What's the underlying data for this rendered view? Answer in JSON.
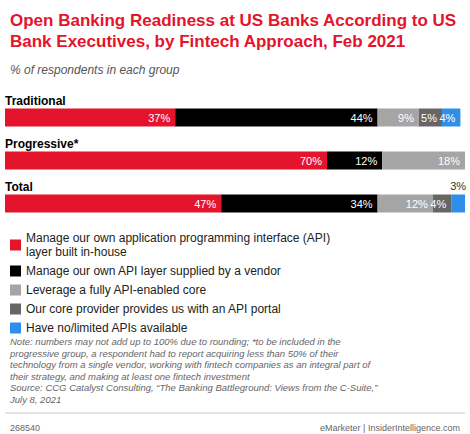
{
  "chart_data": {
    "type": "bar",
    "title": "Open Banking Readiness at US Banks According to US Bank Executives, by Fintech Approach, Feb 2021",
    "subtitle": "% of respondents in each group",
    "orientation": "horizontal",
    "stacked": true,
    "data_labels": true,
    "tick_labels": false,
    "grid": false,
    "legend": "bottom",
    "categories": [
      "Traditional",
      "Progressive*",
      "Total"
    ],
    "xlim": [
      0,
      100
    ],
    "series": [
      {
        "name": "Manage our own application programming interface (API) layer built in-house",
        "color": "#e4142c",
        "values": [
          37,
          70,
          47
        ],
        "value_labels": [
          "37%",
          "70%",
          "47%"
        ]
      },
      {
        "name": "Manage our own API layer supplied by a vendor",
        "color": "#000000",
        "values": [
          44,
          12,
          34
        ],
        "value_labels": [
          "44%",
          "12%",
          "34%"
        ]
      },
      {
        "name": "Leverage a fully API-enabled core",
        "color": "#a5a5a5",
        "values": [
          9,
          18,
          12
        ],
        "value_labels": [
          "9%",
          "18%",
          "12%"
        ]
      },
      {
        "name": "Our core provider provides us with an API portal",
        "color": "#666666",
        "values": [
          5,
          null,
          4
        ],
        "value_labels": [
          "5%",
          null,
          "4%"
        ]
      },
      {
        "name": "Have no/limited APIs available",
        "color": "#2f8fe8",
        "values": [
          4,
          null,
          3
        ],
        "value_labels": [
          "4%",
          null,
          "3%"
        ]
      }
    ],
    "note": "Note: numbers may not add up to 100% due to rounding; *to be included in the progressive group, a respondent had to report acquiring less than 50% of their technology from a single vendor, working with fintech companies as an integral part of their strategy, and making at least one fintech investment",
    "source": "Source: CCG Catalyst Consulting, “The Banking Battleground: Views from the C-Suite,” July 8, 2021",
    "code": "268540",
    "credit": "eMarketer | InsiderIntelligence.com"
  }
}
